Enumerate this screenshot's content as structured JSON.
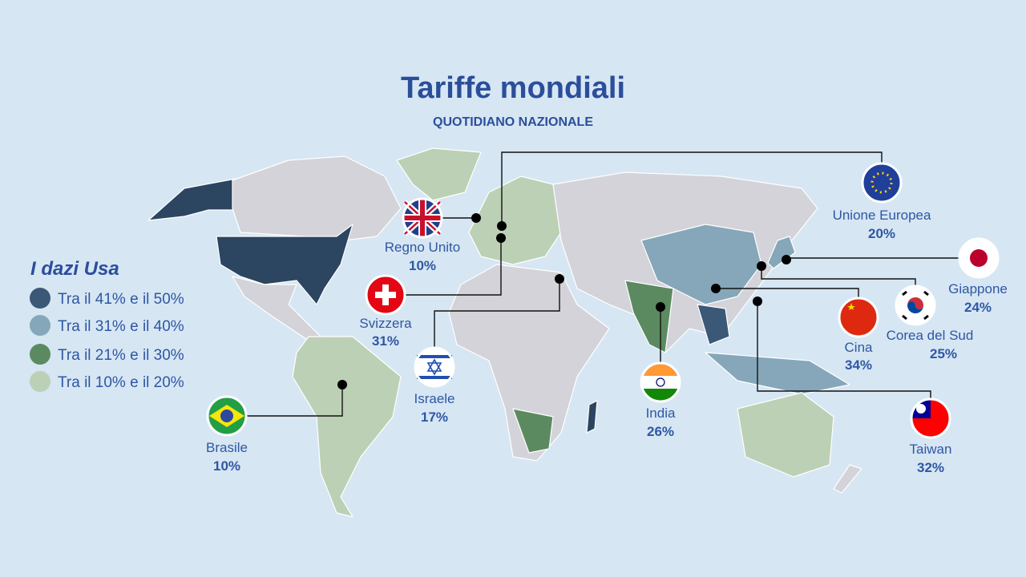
{
  "header": {
    "title": "Tariffe mondiali",
    "subtitle": "QUOTIDIANO NAZIONALE"
  },
  "legend": {
    "title": "I dazi Usa",
    "items": [
      {
        "label": "Tra il 41% e il 50%",
        "color": "#3b5877"
      },
      {
        "label": "Tra il 31% e il 40%",
        "color": "#85a7b9"
      },
      {
        "label": "Tra il 21% e il 30%",
        "color": "#5c8a60"
      },
      {
        "label": "Tra il 10% e il 20%",
        "color": "#bcd0b5"
      }
    ]
  },
  "callouts": [
    {
      "country": "Unione Europea",
      "rate": "20%"
    },
    {
      "country": "Regno Unito",
      "rate": "10%"
    },
    {
      "country": "Svizzera",
      "rate": "31%"
    },
    {
      "country": "Israele",
      "rate": "17%"
    },
    {
      "country": "Brasile",
      "rate": "10%"
    },
    {
      "country": "India",
      "rate": "26%"
    },
    {
      "country": "Cina",
      "rate": "34%"
    },
    {
      "country": "Corea del Sud",
      "rate": "25%"
    },
    {
      "country": "Giappone",
      "rate": "24%"
    },
    {
      "country": "Taiwan",
      "rate": "32%"
    }
  ]
}
